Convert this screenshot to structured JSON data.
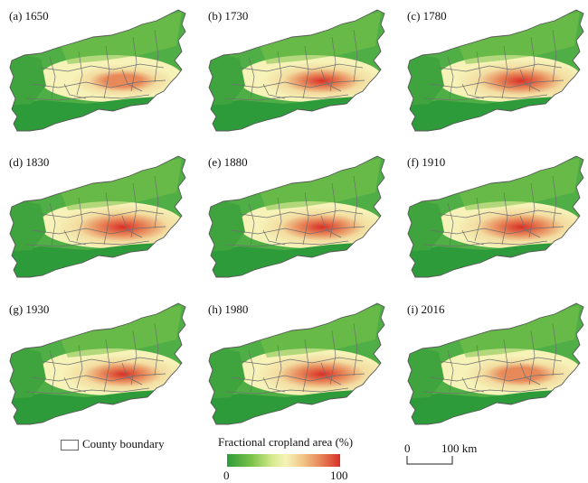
{
  "panels": [
    {
      "label": "(a) 1650",
      "col": 0,
      "row": 0,
      "intensity": 0.3
    },
    {
      "label": "(b) 1730",
      "col": 1,
      "row": 0,
      "intensity": 0.55
    },
    {
      "label": "(c) 1780",
      "col": 2,
      "row": 0,
      "intensity": 0.75
    },
    {
      "label": "(d) 1830",
      "col": 0,
      "row": 1,
      "intensity": 0.9
    },
    {
      "label": "(e) 1880",
      "col": 1,
      "row": 1,
      "intensity": 0.72
    },
    {
      "label": "(f) 1910",
      "col": 2,
      "row": 1,
      "intensity": 0.78
    },
    {
      "label": "(g) 1930",
      "col": 0,
      "row": 2,
      "intensity": 0.62
    },
    {
      "label": "(h) 1980",
      "col": 1,
      "row": 2,
      "intensity": 0.8
    },
    {
      "label": "(i) 2016",
      "col": 2,
      "row": 2,
      "intensity": 0.45
    }
  ],
  "legend": {
    "county_label": "County boundary",
    "ramp_title": "Fractional cropland area (%)",
    "ramp_min": "0",
    "ramp_max": "100",
    "colors": [
      "#2e9b3a",
      "#7cc24a",
      "#f6f2b8",
      "#e8895a",
      "#d73027"
    ]
  },
  "scalebar": {
    "zero": "0",
    "max": "100 km"
  }
}
